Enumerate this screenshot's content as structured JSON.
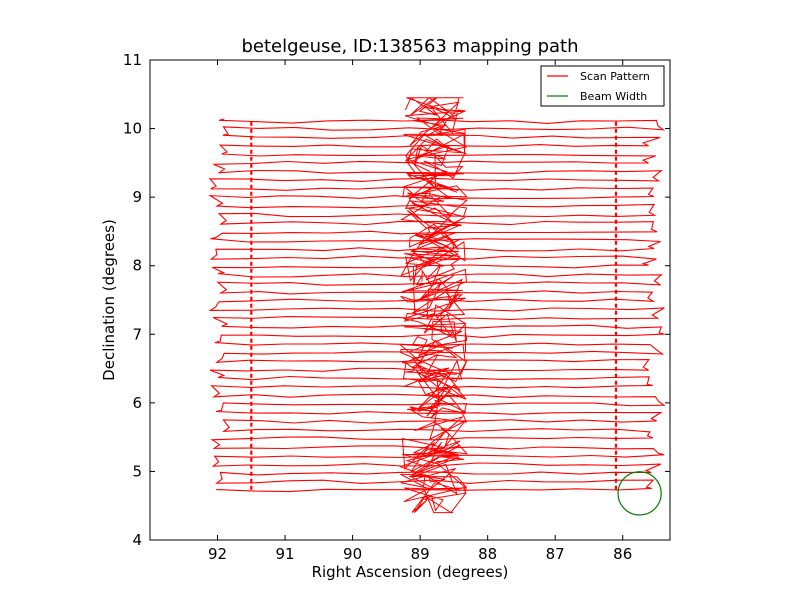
{
  "chart_data": {
    "type": "line",
    "title": "betelgeuse, ID:138563 mapping path",
    "xlabel": "Right Ascension (degrees)",
    "ylabel": "Declination (degrees)",
    "xlim": [
      93.0,
      85.3
    ],
    "ylim": [
      4,
      11
    ],
    "x_ticks": [
      "92",
      "91",
      "90",
      "89",
      "88",
      "87",
      "86"
    ],
    "y_ticks": [
      "4",
      "5",
      "6",
      "7",
      "8",
      "9",
      "10",
      "11"
    ],
    "x_tick_values": [
      92,
      91,
      90,
      89,
      88,
      87,
      86
    ],
    "y_tick_values": [
      4,
      5,
      6,
      7,
      8,
      9,
      10,
      11
    ],
    "grid": false,
    "legend_position": "top-right",
    "scan_color": "#ff0000",
    "beam_color": "#008000",
    "series": [
      {
        "name": "Scan Pattern",
        "kind": "raster-scan",
        "dec_rows": [
          4.73,
          4.85,
          4.97,
          5.1,
          5.22,
          5.35,
          5.48,
          5.6,
          5.73,
          5.85,
          5.98,
          6.1,
          6.23,
          6.36,
          6.48,
          6.61,
          6.73,
          6.86,
          6.98,
          7.11,
          7.24,
          7.36,
          7.49,
          7.61,
          7.74,
          7.86,
          7.99,
          8.12,
          8.24,
          8.37,
          8.49,
          8.62,
          8.74,
          8.87,
          9.0,
          9.12,
          9.25,
          9.37,
          9.5,
          9.62,
          9.75,
          9.88,
          10.0,
          10.1
        ],
        "ra_left": 92.0,
        "ra_right": 85.5,
        "ra_turnarounds": [
          91.5,
          86.1
        ],
        "dense_region_ra": [
          88.3,
          89.3
        ],
        "dense_region_dec": [
          4.4,
          10.45
        ]
      },
      {
        "name": "Beam Width",
        "kind": "circle",
        "center_ra": 85.75,
        "center_dec": 4.68,
        "radius_deg": 0.32
      }
    ]
  }
}
